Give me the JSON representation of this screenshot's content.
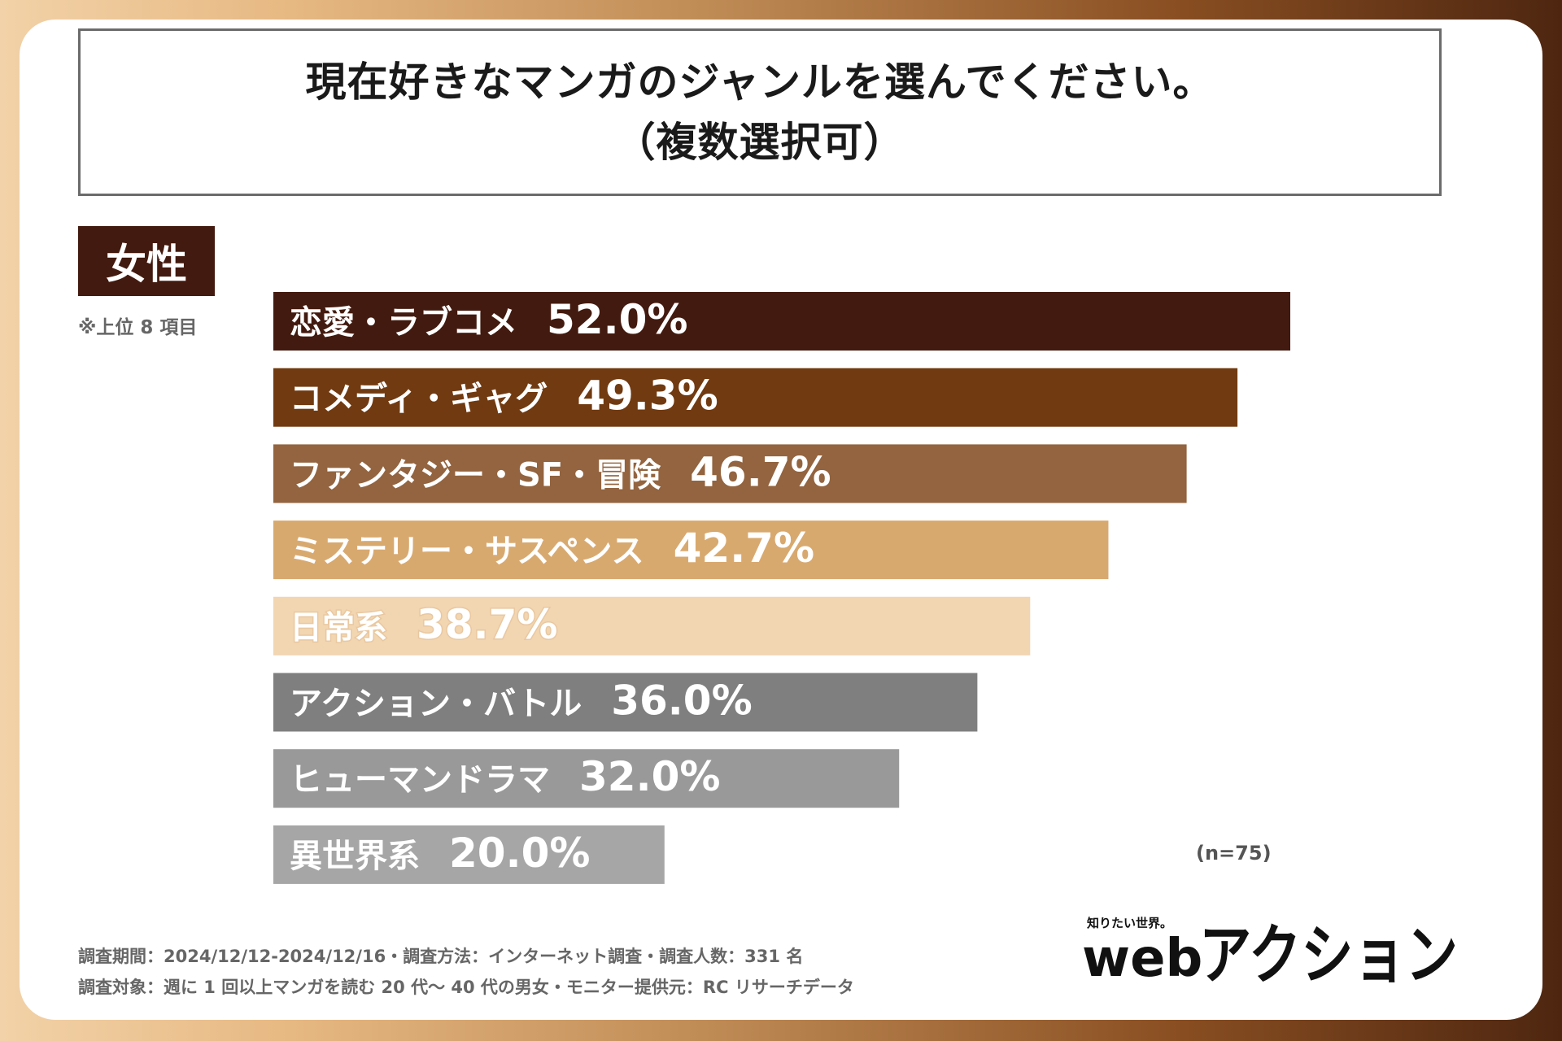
{
  "title": {
    "line1": "現在好きなマンガのジャンルを選んでください。",
    "line2": "（複数選択可）"
  },
  "segment_label": "女性",
  "note": "※上位 8 項目",
  "sample_size": "(n=75)",
  "footer": {
    "line1": "調査期間：2024/12/12-2024/12/16・調査方法：インターネット調査・調査人数：331 名",
    "line2": "調査対象：週に 1 回以上マンガを読む 20 代〜 40 代の男女・モニター提供元：RC リサーチデータ"
  },
  "logo": {
    "tagline": "知りたい世界。",
    "word1": "web",
    "word2": "アクション"
  },
  "chart_data": {
    "type": "bar",
    "orientation": "horizontal",
    "title": "現在好きなマンガのジャンルを選んでください。（複数選択可）",
    "categories": [
      "恋愛・ラブコメ",
      "コメディ・ギャグ",
      "ファンタジー・SF・冒険",
      "ミステリー・サスペンス",
      "日常系",
      "アクション・バトル",
      "ヒューマンドラマ",
      "異世界系"
    ],
    "values": [
      52.0,
      49.3,
      46.7,
      42.7,
      38.7,
      36.0,
      32.0,
      20.0
    ],
    "value_labels": [
      "52.0%",
      "49.3%",
      "46.7%",
      "42.7%",
      "38.7%",
      "36.0%",
      "32.0%",
      "20.0%"
    ],
    "unit": "%",
    "colors": [
      "#431a0f",
      "#713a10",
      "#93643f",
      "#d8a96f",
      "#f2d5b1",
      "#7f7f7f",
      "#999999",
      "#a6a6a6"
    ],
    "xlim": [
      0,
      52.0
    ]
  }
}
